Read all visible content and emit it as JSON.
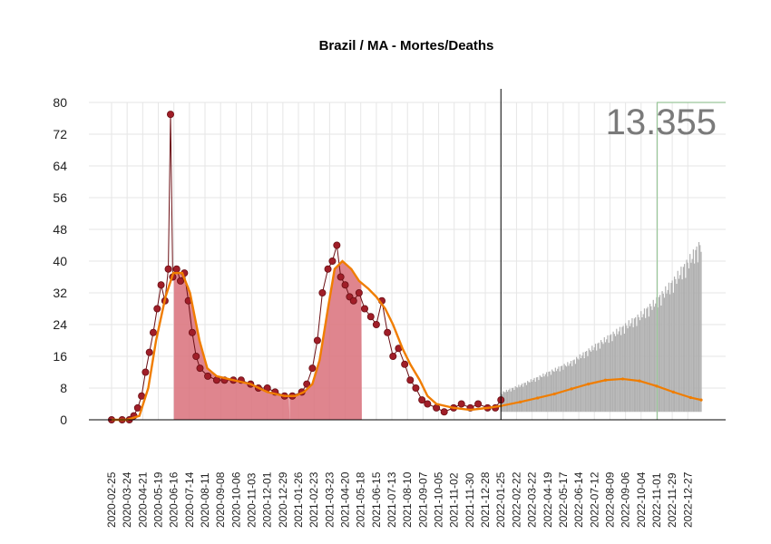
{
  "chart_data": {
    "type": "bar",
    "title": "Brazil / MA - Mortes/Deaths",
    "xlabel": "",
    "ylabel": "",
    "ylim": [
      0,
      80
    ],
    "yticks": [
      0,
      8,
      16,
      24,
      32,
      40,
      48,
      56,
      64,
      72,
      80
    ],
    "xlim": [
      "2020-02-25",
      "2023-01-20"
    ],
    "xtick_labels": [
      "2020-02-25",
      "2020-03-24",
      "2020-04-21",
      "2020-05-19",
      "2020-06-16",
      "2020-07-14",
      "2020-08-11",
      "2020-09-08",
      "2020-10-06",
      "2020-11-03",
      "2020-12-01",
      "2020-12-29",
      "2021-01-26",
      "2021-02-23",
      "2021-03-23",
      "2021-04-20",
      "2021-05-18",
      "2021-06-15",
      "2021-07-13",
      "2021-08-10",
      "2021-09-07",
      "2021-10-05",
      "2021-11-02",
      "2021-11-30",
      "2021-12-28",
      "2022-01-25",
      "2022-02-22",
      "2022-03-22",
      "2022-04-19",
      "2022-05-17",
      "2022-06-14",
      "2022-07-12",
      "2022-08-09",
      "2022-09-06",
      "2022-10-04",
      "2022-11-01",
      "2022-11-29",
      "2022-12-27"
    ],
    "vline_date": "2022-01-25",
    "total_label": "13.355",
    "grid": true,
    "colors": {
      "observed_points": "#a01e28",
      "observed_line": "#6b0f14",
      "smoothed_line": "#f07d00",
      "area_fill": "#d9707a",
      "projection_band": "#b0b0b0",
      "vline": "#000000",
      "reference_line": "#9ac79a",
      "grid": "#e6e6e6"
    },
    "series": [
      {
        "role": "observed",
        "x": [
          "2020-02-25",
          "2020-03-15",
          "2020-03-28",
          "2020-04-05",
          "2020-04-12",
          "2020-04-19",
          "2020-04-26",
          "2020-05-03",
          "2020-05-10",
          "2020-05-17",
          "2020-05-24",
          "2020-05-31",
          "2020-06-06",
          "2020-06-10",
          "2020-06-14",
          "2020-06-21",
          "2020-06-28",
          "2020-07-05",
          "2020-07-12",
          "2020-07-19",
          "2020-07-26",
          "2020-08-02",
          "2020-08-16",
          "2020-09-01",
          "2020-09-15",
          "2020-10-01",
          "2020-10-15",
          "2020-11-01",
          "2020-11-15",
          "2020-12-01",
          "2020-12-15",
          "2021-01-01",
          "2021-01-15",
          "2021-02-01",
          "2021-02-10",
          "2021-02-20",
          "2021-03-01",
          "2021-03-10",
          "2021-03-20",
          "2021-03-28",
          "2021-04-05",
          "2021-04-12",
          "2021-04-20",
          "2021-04-28",
          "2021-05-05",
          "2021-05-15",
          "2021-05-25",
          "2021-06-05",
          "2021-06-15",
          "2021-06-25",
          "2021-07-05",
          "2021-07-15",
          "2021-07-25",
          "2021-08-05",
          "2021-08-15",
          "2021-08-25",
          "2021-09-05",
          "2021-09-15",
          "2021-10-01",
          "2021-10-15",
          "2021-11-01",
          "2021-11-15",
          "2021-12-01",
          "2021-12-15",
          "2022-01-01",
          "2022-01-15",
          "2022-01-25"
        ],
        "y": [
          0,
          0,
          0,
          1,
          3,
          6,
          12,
          17,
          22,
          28,
          34,
          30,
          38,
          77,
          36,
          38,
          35,
          37,
          30,
          22,
          16,
          13,
          11,
          10,
          10,
          10,
          10,
          9,
          8,
          8,
          7,
          6,
          6,
          7,
          9,
          13,
          20,
          32,
          38,
          40,
          44,
          36,
          34,
          31,
          30,
          32,
          28,
          26,
          24,
          30,
          22,
          16,
          18,
          14,
          10,
          8,
          5,
          4,
          3,
          2,
          3,
          4,
          3,
          4,
          3,
          3,
          5
        ]
      },
      {
        "role": "smoothed",
        "x": [
          "2020-02-25",
          "2020-03-24",
          "2020-04-15",
          "2020-05-01",
          "2020-05-15",
          "2020-06-01",
          "2020-06-15",
          "2020-07-01",
          "2020-07-15",
          "2020-08-01",
          "2020-08-15",
          "2020-09-01",
          "2020-10-01",
          "2020-11-01",
          "2020-12-01",
          "2021-01-01",
          "2021-01-20",
          "2021-02-05",
          "2021-02-20",
          "2021-03-05",
          "2021-03-20",
          "2021-04-01",
          "2021-04-15",
          "2021-05-01",
          "2021-05-15",
          "2021-06-01",
          "2021-06-15",
          "2021-07-01",
          "2021-07-15",
          "2021-08-01",
          "2021-08-15",
          "2021-09-01",
          "2021-09-15",
          "2021-10-01",
          "2021-11-01",
          "2021-12-01",
          "2022-01-01",
          "2022-01-25"
        ],
        "y": [
          0,
          0,
          1,
          8,
          20,
          31,
          37,
          37,
          32,
          20,
          13,
          11,
          10,
          9,
          7,
          6,
          6,
          7,
          9,
          15,
          28,
          38,
          40,
          38,
          35,
          33,
          31,
          28,
          24,
          18,
          14,
          10,
          6,
          4,
          3,
          2.5,
          3,
          3.5
        ]
      },
      {
        "role": "projection",
        "x": [
          "2022-01-25",
          "2022-03-01",
          "2022-04-01",
          "2022-05-01",
          "2022-06-01",
          "2022-07-01",
          "2022-08-01",
          "2022-09-01",
          "2022-10-01",
          "2022-11-01",
          "2022-12-01",
          "2023-01-01",
          "2023-01-20"
        ],
        "y": [
          3.5,
          4.5,
          5.5,
          6.5,
          7.8,
          9,
          10,
          10.3,
          9.8,
          8.5,
          7,
          5.6,
          5
        ],
        "upper": [
          7,
          9,
          11,
          13,
          15,
          18,
          21,
          24,
          27,
          31,
          36,
          42,
          46
        ],
        "lower": [
          2,
          2,
          2,
          2,
          2,
          2,
          2,
          2,
          2,
          2,
          2,
          2,
          2
        ]
      }
    ]
  }
}
